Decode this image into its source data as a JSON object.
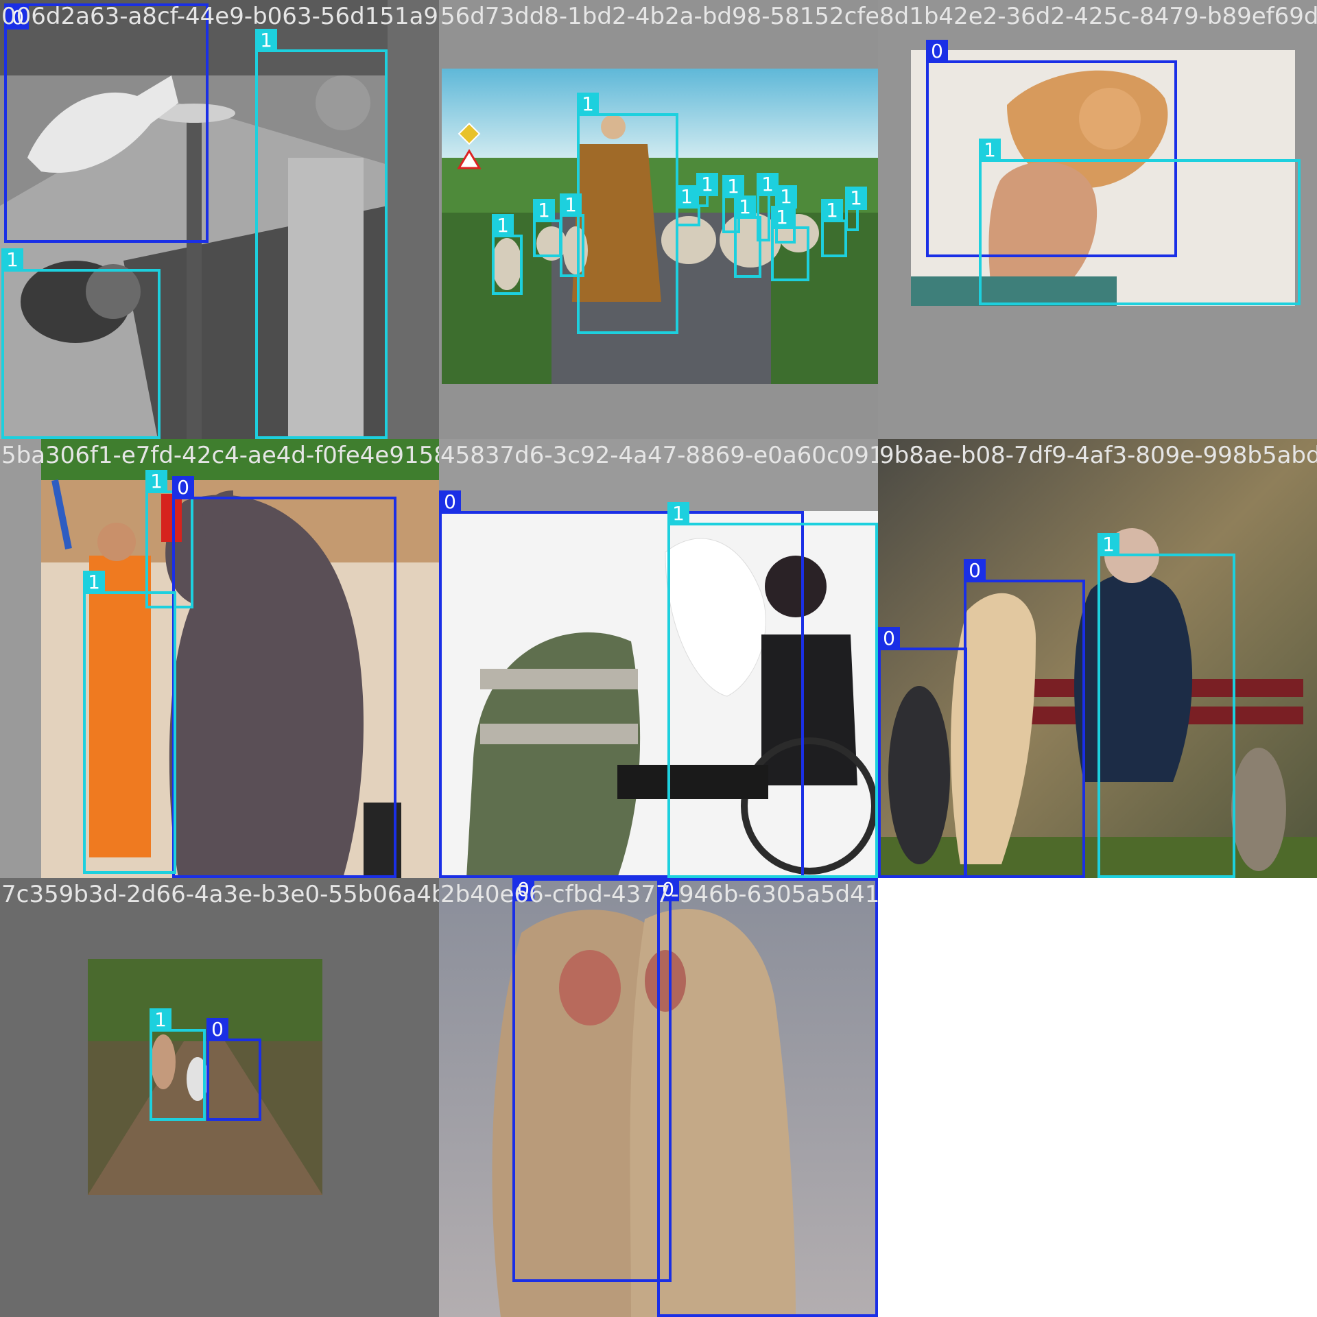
{
  "grid": {
    "tiles": [
      {
        "filename": "006d2a63-a8cf-44e9-b063-56d151a92587_jpg",
        "scene": "grayscale-dog-at-fountain-with-boys",
        "boxes": [
          {
            "label": "0"
          },
          {
            "label": "1"
          },
          {
            "label": "1"
          }
        ]
      },
      {
        "filename": "56d73dd8-1bd2-4b2a-bd98-58152cfea828_jpg",
        "scene": "shepherd-with-sheep-on-road",
        "boxes": [
          {
            "label": "1"
          },
          {
            "label": "1"
          },
          {
            "label": "1"
          },
          {
            "label": "1"
          },
          {
            "label": "1"
          },
          {
            "label": "1"
          },
          {
            "label": "1"
          },
          {
            "label": "1"
          },
          {
            "label": "1"
          },
          {
            "label": "1"
          },
          {
            "label": "1"
          },
          {
            "label": "1"
          },
          {
            "label": "1"
          }
        ]
      },
      {
        "filename": "8d1b42e2-36d2-425c-8479-b89ef69d2",
        "scene": "man-and-dog-lying-on-rug",
        "boxes": [
          {
            "label": "0"
          },
          {
            "label": "1"
          }
        ]
      },
      {
        "filename": "5ba306f1-e7fd-42c4-ae4d-f0fe4e915874_jpg",
        "scene": "man-with-baby-elephant",
        "boxes": [
          {
            "label": "1"
          },
          {
            "label": "0"
          },
          {
            "label": "1"
          }
        ]
      },
      {
        "filename": "45837d6-3c92-4a47-8869-e0a60c091839_jpg",
        "scene": "woman-in-wheelchair-with-white-horse",
        "boxes": [
          {
            "label": "0"
          },
          {
            "label": "1"
          }
        ]
      },
      {
        "filename": "9b8ae-b08-7df9-4af3-809e-998b5abd1",
        "scene": "old-man-on-bench-with-dogs-and-cat",
        "boxes": [
          {
            "label": "0"
          },
          {
            "label": "0"
          },
          {
            "label": "1"
          }
        ]
      },
      {
        "filename": "7c359b3d-2d66-4a3e-b3e0-55b06a4b2b74_jpg",
        "scene": "child-and-goose-on-path",
        "boxes": [
          {
            "label": "1"
          },
          {
            "label": "0"
          }
        ]
      },
      {
        "filename": "2b40e66-cfbd-4377-946b-6305a5d41fd0_jpg",
        "scene": "two-macaques-hugging",
        "boxes": [
          {
            "label": "0"
          },
          {
            "label": "0"
          }
        ]
      }
    ]
  },
  "colors": {
    "class0": "#1a2fe6",
    "class1": "#1dd0de",
    "tile_background": "#6b6b6b",
    "page_background": "#ffffff"
  }
}
